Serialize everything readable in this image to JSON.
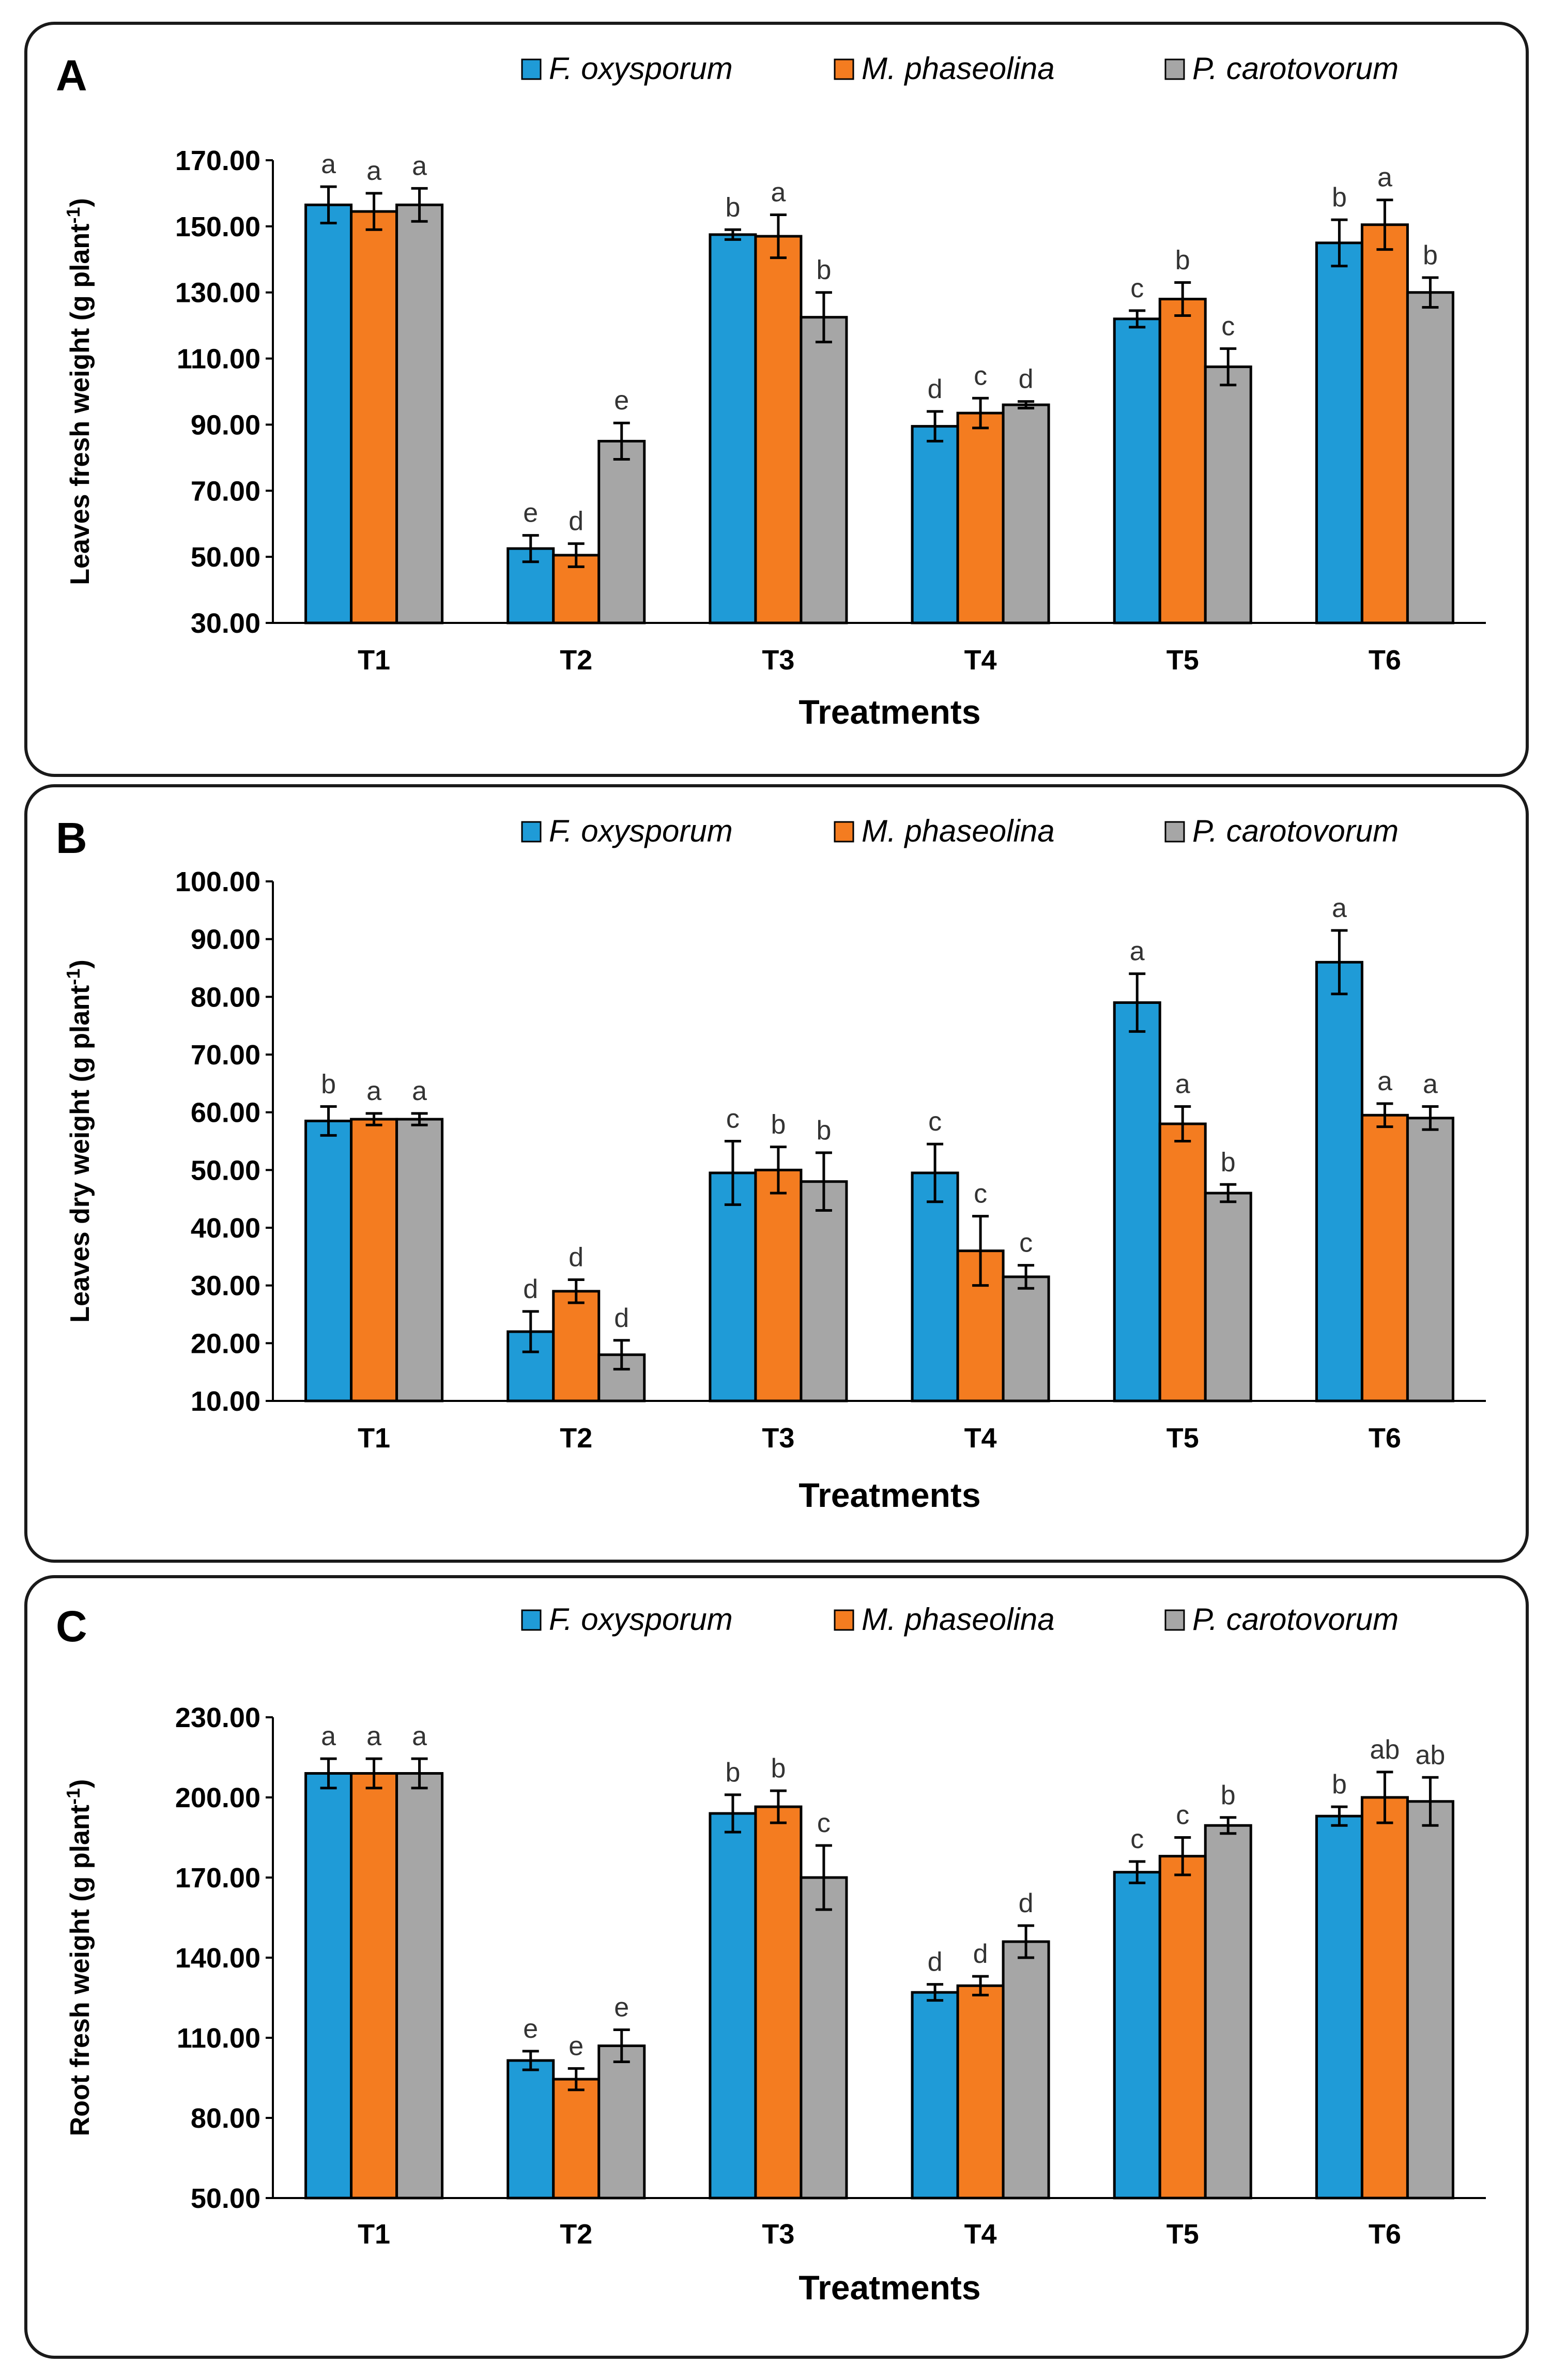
{
  "colors": {
    "F. oxysporum": "#1f9bd7",
    "M. phaseolina": "#f47c20",
    "P. carotovorum": "#a6a6a6",
    "frame": "#1a1a1a"
  },
  "chart_data": [
    {
      "type": "bar",
      "panel": "A",
      "title": "",
      "categories": [
        "T1",
        "T2",
        "T3",
        "T4",
        "T5",
        "T6"
      ],
      "xlabel": "Treatments",
      "ylabel": "Leaves fresh weight (g plant",
      "ylabel_sup": "-1",
      "ylabel_end": ")",
      "ylim": [
        30,
        170
      ],
      "yticks": [
        30,
        50,
        70,
        90,
        110,
        130,
        150,
        170
      ],
      "ytick_labels": [
        "30.00",
        "50.00",
        "70.00",
        "90.00",
        "110.00",
        "130.00",
        "150.00",
        "170.00"
      ],
      "legend_position": "top-right",
      "series": [
        {
          "name": "F. oxysporum",
          "values": [
            156.5,
            52.5,
            147.5,
            89.5,
            122.0,
            145.0
          ],
          "errors": [
            5.5,
            4.0,
            1.5,
            4.5,
            2.5,
            7.0
          ],
          "labels": [
            "a",
            "e",
            "b",
            "d",
            "c",
            "b"
          ]
        },
        {
          "name": "M. phaseolina",
          "values": [
            154.5,
            50.5,
            147.0,
            93.5,
            128.0,
            150.5
          ],
          "errors": [
            5.5,
            3.5,
            6.5,
            4.5,
            5.0,
            7.5
          ],
          "labels": [
            "a",
            "d",
            "a",
            "c",
            "b",
            "a"
          ]
        },
        {
          "name": "P. carotovorum",
          "values": [
            156.5,
            85.0,
            122.5,
            96.0,
            107.5,
            130.0
          ],
          "errors": [
            5.0,
            5.5,
            7.5,
            1.0,
            5.5,
            4.5
          ],
          "labels": [
            "a",
            "e",
            "b",
            "d",
            "c",
            "b"
          ]
        }
      ]
    },
    {
      "type": "bar",
      "panel": "B",
      "title": "",
      "categories": [
        "T1",
        "T2",
        "T3",
        "T4",
        "T5",
        "T6"
      ],
      "xlabel": "Treatments",
      "ylabel": "Leaves dry weight (g plant",
      "ylabel_sup": "-1",
      "ylabel_end": ")",
      "ylim": [
        10,
        100
      ],
      "yticks": [
        10,
        20,
        30,
        40,
        50,
        60,
        70,
        80,
        90,
        100
      ],
      "ytick_labels": [
        "10.00",
        "20.00",
        "30.00",
        "40.00",
        "50.00",
        "60.00",
        "70.00",
        "80.00",
        "90.00",
        "100.00"
      ],
      "legend_position": "top-right",
      "series": [
        {
          "name": "F. oxysporum",
          "values": [
            58.5,
            22.0,
            49.5,
            49.5,
            79.0,
            86.0
          ],
          "errors": [
            2.5,
            3.5,
            5.5,
            5.0,
            5.0,
            5.5
          ],
          "labels": [
            "b",
            "d",
            "c",
            "c",
            "a",
            "a"
          ]
        },
        {
          "name": "M. phaseolina",
          "values": [
            58.8,
            29.0,
            50.0,
            36.0,
            58.0,
            59.5
          ],
          "errors": [
            1.0,
            2.0,
            4.0,
            6.0,
            3.0,
            2.0
          ],
          "labels": [
            "a",
            "d",
            "b",
            "c",
            "a",
            "a"
          ]
        },
        {
          "name": "P. carotovorum",
          "values": [
            58.8,
            18.0,
            48.0,
            31.5,
            46.0,
            59.0
          ],
          "errors": [
            1.0,
            2.5,
            5.0,
            2.0,
            1.5,
            2.0
          ],
          "labels": [
            "a",
            "d",
            "b",
            "c",
            "b",
            "a"
          ]
        }
      ]
    },
    {
      "type": "bar",
      "panel": "C",
      "title": "",
      "categories": [
        "T1",
        "T2",
        "T3",
        "T4",
        "T5",
        "T6"
      ],
      "xlabel": "Treatments",
      "ylabel": "Root fresh weight (g plant",
      "ylabel_sup": "-1",
      "ylabel_end": ")",
      "ylim": [
        50,
        230
      ],
      "yticks": [
        50,
        80,
        110,
        140,
        170,
        200,
        230
      ],
      "ytick_labels": [
        "50.00",
        "80.00",
        "110.00",
        "140.00",
        "170.00",
        "200.00",
        "230.00"
      ],
      "legend_position": "top-right",
      "series": [
        {
          "name": "F. oxysporum",
          "values": [
            209.0,
            101.5,
            194.0,
            127.0,
            172.0,
            193.0
          ],
          "errors": [
            5.5,
            3.5,
            7.0,
            3.0,
            4.0,
            3.5
          ],
          "labels": [
            "a",
            "e",
            "b",
            "d",
            "c",
            "b"
          ]
        },
        {
          "name": "M. phaseolina",
          "values": [
            209.0,
            94.5,
            196.5,
            129.5,
            178.0,
            200.0
          ],
          "errors": [
            5.5,
            4.0,
            6.0,
            3.5,
            7.0,
            9.5
          ],
          "labels": [
            "a",
            "e",
            "b",
            "d",
            "c",
            "ab"
          ]
        },
        {
          "name": "P. carotovorum",
          "values": [
            209.0,
            107.0,
            170.0,
            146.0,
            189.5,
            198.5
          ],
          "errors": [
            5.5,
            6.0,
            12.0,
            6.0,
            3.0,
            9.0
          ],
          "labels": [
            "a",
            "e",
            "c",
            "d",
            "b",
            "ab"
          ]
        }
      ]
    }
  ]
}
